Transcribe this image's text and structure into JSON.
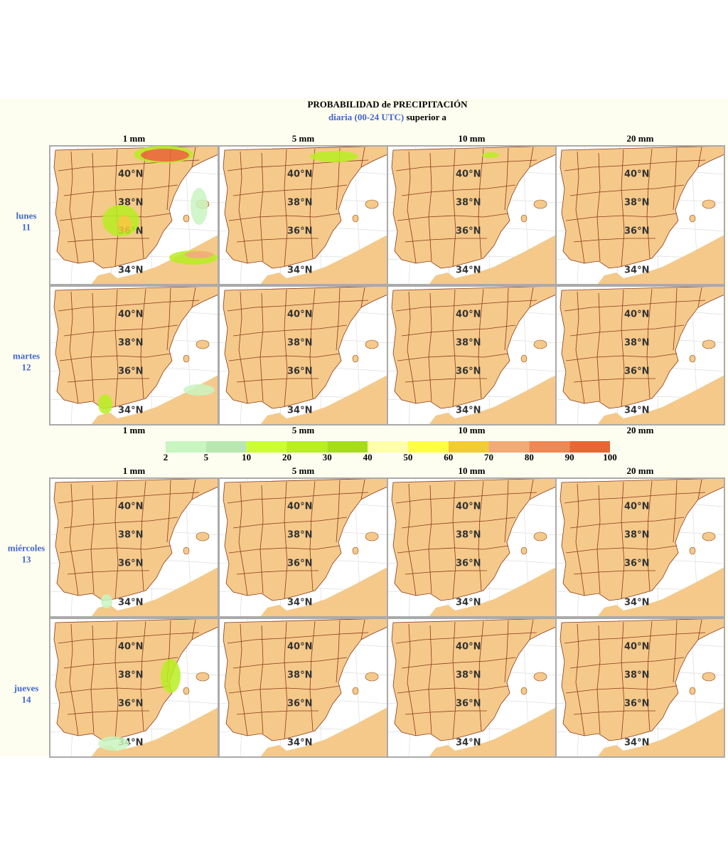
{
  "header": {
    "title": "PROBABILIDAD de PRECIPITACIÓN",
    "subtitle_blue": "diaria (00-24 UTC)",
    "subtitle_rest": "superior a"
  },
  "columns": [
    "1 mm",
    "5 mm",
    "10 mm",
    "20 mm"
  ],
  "rows": [
    {
      "day": "lunes",
      "date": "11"
    },
    {
      "day": "martes",
      "date": "12"
    },
    {
      "day": "miércoles",
      "date": "13"
    },
    {
      "day": "jueves",
      "date": "14"
    }
  ],
  "legend": {
    "values": [
      2,
      5,
      10,
      20,
      30,
      40,
      50,
      60,
      70,
      80,
      90,
      100
    ],
    "colors": [
      "#c8f5c0",
      "#b8e8b0",
      "#ccff33",
      "#b8ee22",
      "#a6dd1a",
      "#ffffaa",
      "#ffff44",
      "#f2cc33",
      "#f2aa77",
      "#ee8855",
      "#e86633"
    ]
  }
}
